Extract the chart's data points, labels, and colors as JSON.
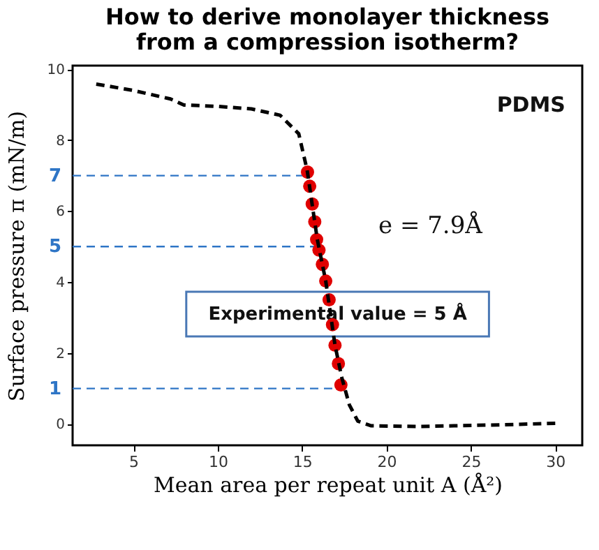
{
  "chart_data": {
    "type": "line",
    "title": "How to derive monolayer thickness\nfrom a compression isotherm?",
    "xlabel": "Mean area per repeat unit A (Å²)",
    "ylabel": "Surface pressure π (mN/m)",
    "xlim": [
      1.4,
      31.6
    ],
    "xticks": [
      5,
      10,
      15,
      20,
      25,
      30
    ],
    "ylim": [
      -0.6,
      10.1
    ],
    "yticks": [
      0,
      2,
      4,
      6,
      8,
      10
    ],
    "grid": false,
    "series": [
      {
        "type": "scatter",
        "marker": "circle",
        "color": "#e00000",
        "x": [
          15.32,
          15.45,
          15.6,
          15.75,
          15.86,
          16.0,
          16.2,
          16.4,
          16.6,
          16.8,
          16.95,
          17.15,
          17.3
        ],
        "values": [
          7.1,
          6.7,
          6.2,
          5.7,
          5.2,
          4.9,
          4.5,
          4.03,
          3.5,
          2.8,
          2.22,
          1.7,
          1.1
        ]
      },
      {
        "line_style": "dashed",
        "marker": "none",
        "color": "#000000",
        "x": [
          2.8,
          5.0,
          7.2,
          8.0,
          10.0,
          12.0,
          13.7,
          14.8,
          15.3,
          15.9,
          16.4,
          16.95,
          17.35,
          17.8,
          18.3,
          19.1,
          22.0,
          24.0,
          27.0,
          30.0
        ],
        "values": [
          9.58,
          9.4,
          9.16,
          8.99,
          8.95,
          8.88,
          8.7,
          8.18,
          7.15,
          5.2,
          4.03,
          2.22,
          1.31,
          0.54,
          0.08,
          -0.05,
          -0.07,
          -0.05,
          -0.02,
          0.02
        ]
      }
    ],
    "ref_lines": [
      {
        "axis": "y",
        "value": 7,
        "label": "7",
        "color": "#2e75c6",
        "line_style": "dashed"
      },
      {
        "axis": "y",
        "value": 5,
        "label": "5",
        "color": "#2e75c6",
        "line_style": "dashed"
      },
      {
        "axis": "y",
        "value": 1,
        "label": "1",
        "color": "#2e75c6",
        "line_style": "dashed"
      }
    ],
    "annotations": [
      "PDMS",
      "e = 7.9Å",
      "Experimental value = 5 Å"
    ]
  }
}
